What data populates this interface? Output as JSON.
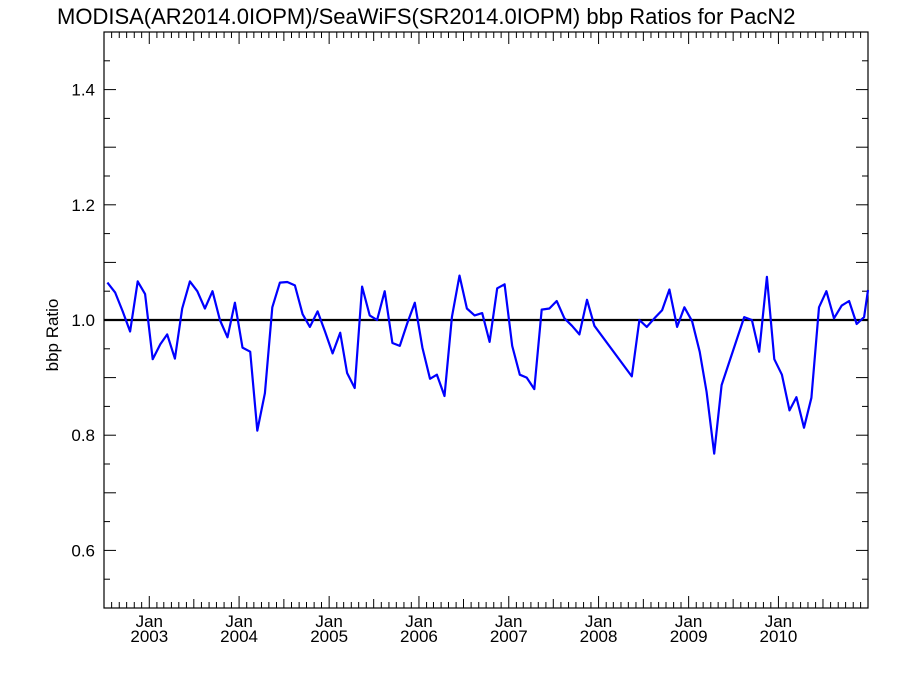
{
  "chart_data": {
    "type": "line",
    "title": "MODISA(AR2014.0IOPM)/SeaWiFS(SR2014.0IOPM)  bbp Ratios for PacN2",
    "xlabel": "",
    "ylabel": "bbp Ratio",
    "ylim": [
      0.5,
      1.5
    ],
    "xlim": [
      "2002-07-01",
      "2010-12-31"
    ],
    "yticks": [
      {
        "value": 0.6,
        "label": "0.6"
      },
      {
        "value": 0.8,
        "label": "0.8"
      },
      {
        "value": 1.0,
        "label": "1.0"
      },
      {
        "value": 1.2,
        "label": "1.2"
      },
      {
        "value": 1.4,
        "label": "1.4"
      }
    ],
    "xticks": [
      {
        "date": "2003-01-01",
        "month": "Jan",
        "year": "2003"
      },
      {
        "date": "2004-01-01",
        "month": "Jan",
        "year": "2004"
      },
      {
        "date": "2005-01-01",
        "month": "Jan",
        "year": "2005"
      },
      {
        "date": "2006-01-01",
        "month": "Jan",
        "year": "2006"
      },
      {
        "date": "2007-01-01",
        "month": "Jan",
        "year": "2007"
      },
      {
        "date": "2008-01-01",
        "month": "Jan",
        "year": "2008"
      },
      {
        "date": "2009-01-01",
        "month": "Jan",
        "year": "2009"
      },
      {
        "date": "2010-01-01",
        "month": "Jan",
        "year": "2010"
      }
    ],
    "reference_line": {
      "y": 1.0,
      "color": "#000000"
    },
    "series": [
      {
        "color": "#0000ff",
        "points": [
          [
            "2002-07-15",
            1.065
          ],
          [
            "2002-08-15",
            1.048
          ],
          [
            "2002-09-15",
            1.015
          ],
          [
            "2002-10-15",
            0.98
          ],
          [
            "2002-11-15",
            1.067
          ],
          [
            "2002-12-15",
            1.045
          ],
          [
            "2003-01-15",
            0.932
          ],
          [
            "2003-02-15",
            0.958
          ],
          [
            "2003-03-15",
            0.975
          ],
          [
            "2003-04-15",
            0.933
          ],
          [
            "2003-05-15",
            1.02
          ],
          [
            "2003-06-15",
            1.067
          ],
          [
            "2003-07-15",
            1.05
          ],
          [
            "2003-08-15",
            1.02
          ],
          [
            "2003-09-15",
            1.05
          ],
          [
            "2003-10-15",
            1.0
          ],
          [
            "2003-11-15",
            0.97
          ],
          [
            "2003-12-15",
            1.03
          ],
          [
            "2004-01-15",
            0.952
          ],
          [
            "2004-02-15",
            0.945
          ],
          [
            "2004-03-15",
            0.808
          ],
          [
            "2004-04-15",
            0.873
          ],
          [
            "2004-05-15",
            1.022
          ],
          [
            "2004-06-15",
            1.065
          ],
          [
            "2004-07-15",
            1.066
          ],
          [
            "2004-08-15",
            1.06
          ],
          [
            "2004-09-15",
            1.01
          ],
          [
            "2004-10-15",
            0.988
          ],
          [
            "2004-11-15",
            1.015
          ],
          [
            "2004-12-15",
            0.98
          ],
          [
            "2005-01-15",
            0.942
          ],
          [
            "2005-02-15",
            0.978
          ],
          [
            "2005-03-15",
            0.908
          ],
          [
            "2005-04-15",
            0.882
          ],
          [
            "2005-05-15",
            1.058
          ],
          [
            "2005-06-15",
            1.008
          ],
          [
            "2005-07-15",
            1.0
          ],
          [
            "2005-08-15",
            1.05
          ],
          [
            "2005-09-15",
            0.96
          ],
          [
            "2005-10-15",
            0.955
          ],
          [
            "2005-11-15",
            0.995
          ],
          [
            "2005-12-15",
            1.03
          ],
          [
            "2006-01-15",
            0.952
          ],
          [
            "2006-02-15",
            0.898
          ],
          [
            "2006-03-15",
            0.905
          ],
          [
            "2006-04-15",
            0.868
          ],
          [
            "2006-05-15",
            1.005
          ],
          [
            "2006-06-15",
            1.077
          ],
          [
            "2006-07-15",
            1.02
          ],
          [
            "2006-08-15",
            1.008
          ],
          [
            "2006-09-15",
            1.012
          ],
          [
            "2006-10-15",
            0.962
          ],
          [
            "2006-11-15",
            1.055
          ],
          [
            "2006-12-15",
            1.062
          ],
          [
            "2007-01-15",
            0.955
          ],
          [
            "2007-02-15",
            0.905
          ],
          [
            "2007-03-15",
            0.9
          ],
          [
            "2007-04-15",
            0.88
          ],
          [
            "2007-05-15",
            1.018
          ],
          [
            "2007-06-15",
            1.02
          ],
          [
            "2007-07-15",
            1.033
          ],
          [
            "2007-08-15",
            1.003
          ],
          [
            "2007-09-15",
            0.99
          ],
          [
            "2007-10-15",
            0.975
          ],
          [
            "2007-11-15",
            1.035
          ],
          [
            "2007-12-15",
            0.99
          ],
          [
            "2008-05-15",
            0.902
          ],
          [
            "2008-06-15",
            1.0
          ],
          [
            "2008-07-15",
            0.988
          ],
          [
            "2008-08-15",
            1.003
          ],
          [
            "2008-09-15",
            1.017
          ],
          [
            "2008-10-15",
            1.053
          ],
          [
            "2008-11-15",
            0.988
          ],
          [
            "2008-12-15",
            1.022
          ],
          [
            "2009-01-15",
            0.998
          ],
          [
            "2009-02-15",
            0.945
          ],
          [
            "2009-03-15",
            0.875
          ],
          [
            "2009-04-15",
            0.768
          ],
          [
            "2009-05-15",
            0.887
          ],
          [
            "2009-08-15",
            1.005
          ],
          [
            "2009-09-15",
            1.0
          ],
          [
            "2009-10-15",
            0.945
          ],
          [
            "2009-11-15",
            1.075
          ],
          [
            "2009-12-15",
            0.932
          ],
          [
            "2010-01-15",
            0.905
          ],
          [
            "2010-02-15",
            0.843
          ],
          [
            "2010-03-15",
            0.866
          ],
          [
            "2010-04-15",
            0.813
          ],
          [
            "2010-05-15",
            0.865
          ],
          [
            "2010-06-15",
            1.022
          ],
          [
            "2010-07-15",
            1.05
          ],
          [
            "2010-08-15",
            1.003
          ],
          [
            "2010-09-15",
            1.025
          ],
          [
            "2010-10-15",
            1.033
          ],
          [
            "2010-11-15",
            0.993
          ],
          [
            "2010-12-15",
            1.005
          ],
          [
            "2010-12-31",
            1.052
          ]
        ]
      }
    ],
    "grid": false,
    "legend": "none"
  }
}
